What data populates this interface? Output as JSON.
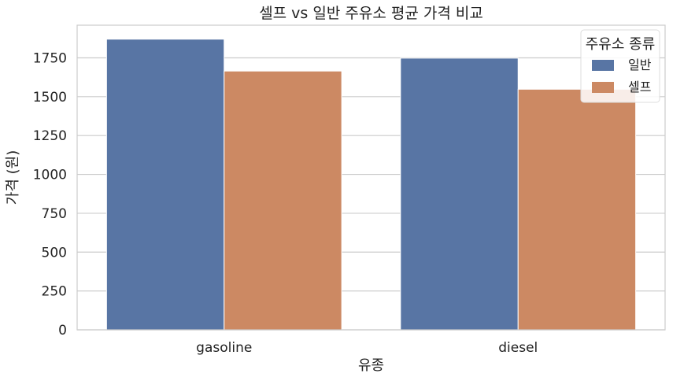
{
  "chart_data": {
    "type": "bar",
    "title": "셀프 vs 일반 주유소 평균 가격 비교",
    "xlabel": "유종",
    "ylabel": "가격 (원)",
    "categories": [
      "gasoline",
      "diesel"
    ],
    "series": [
      {
        "name": "일반",
        "color": "#5875a4",
        "values": [
          1870,
          1748
        ]
      },
      {
        "name": "셀프",
        "color": "#cc8963",
        "values": [
          1665,
          1548
        ]
      }
    ],
    "ylim": [
      0,
      1960
    ],
    "yticks": [
      0,
      250,
      500,
      750,
      1000,
      1250,
      1500,
      1750
    ],
    "grid": "horizontal",
    "legend": {
      "title": "주유소 종류",
      "placement": "top-right"
    }
  }
}
